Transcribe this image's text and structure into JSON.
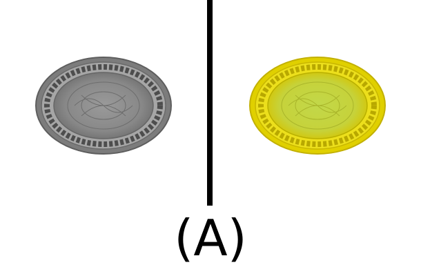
{
  "label": "(A)",
  "panels": [
    {
      "name": "left",
      "plate_color": "gray",
      "rim_hex": "#7a7a7a",
      "fill_hex": "#8c8c8c"
    },
    {
      "name": "right",
      "plate_color": "yellow",
      "rim_hex": "#d8c800",
      "fill_hex": "#c8d23a"
    }
  ],
  "divider_color": "#000000",
  "background": "#ffffff"
}
